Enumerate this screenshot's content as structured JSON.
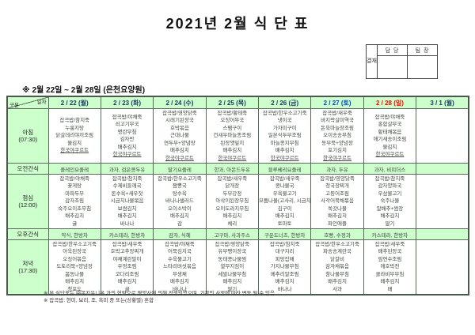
{
  "title": "2021년 2월 식 단 표",
  "approval": {
    "stamp_label": "결재",
    "col1": "담 당",
    "col2": "팀 장"
  },
  "subtitle": "※  2월 22일  ~  2월 28일  (은천요양원)",
  "table": {
    "corner": {
      "top": "일자",
      "bottom": "구분"
    },
    "header_bg": "#ccffcc",
    "columns": [
      {
        "label": "2 / 22 (월)",
        "color": "#1f3864"
      },
      {
        "label": "2 / 23 (화)",
        "color": "#1f3864"
      },
      {
        "label": "2 / 24 (수)",
        "color": "#1f3864"
      },
      {
        "label": "2 / 25 (목)",
        "color": "#1f3864"
      },
      {
        "label": "2 / 26 (금)",
        "color": "#1f3864"
      },
      {
        "label": "2 / 27 (토)",
        "color": "#0044cc"
      },
      {
        "label": "2 / 28 (일)",
        "color": "#ff0000"
      },
      {
        "label": "3 / 1 (월)",
        "color": "#1f3864"
      }
    ],
    "rows": [
      {
        "id": "breakfast",
        "type": "meal",
        "label_lines": [
          "아침",
          "(07:30)"
        ],
        "cells": [
          [
            "잡곡밥/참치죽",
            "누룽지탕",
            "닭살데리야끼조림",
            "물김치",
            "한국야쿠르트"
          ],
          [
            "잡곡밥/야채죽",
            "쇠고기무국",
            "명란무침",
            "김자반",
            "배추김치",
            "한국야쿠르트"
          ],
          [
            "잡곡밥/영양닭죽",
            "시래기된장국",
            "호박볶음",
            "근대나물",
            "연두부+양념장",
            "배추김치",
            "한국야쿠르트"
          ],
          [
            "잡곡밥/황태죽",
            "오징어무국",
            "스팸구이",
            "건새우마늘종조림",
            "된장깻잎지",
            "배추김치",
            "한국야쿠르트"
          ],
          [
            "잡곡밥/한우소고기죽",
            "냉이국",
            "가자미구이",
            "일본식두부조림",
            "마늘종지무침",
            "배추김치",
            "한국야쿠르트"
          ],
          [
            "잡곡밥/새우죽",
            "바지락살미역국",
            "돈육마늘장조림",
            "오이송송무침",
            "동부묵+양념장",
            "포기김치",
            "한국야쿠르트"
          ],
          [
            "잡곡밥/야채죽",
            "홍합살무국",
            "황태채볶음",
            "애기새송이조림",
            "물김치",
            "한국야쿠르트"
          ],
          []
        ]
      },
      {
        "id": "am-snack",
        "type": "snack",
        "label_lines": [
          "오전간식"
        ],
        "cells": [
          [
            "플레인요플레"
          ],
          [
            "과자, 검은콩두유"
          ],
          [
            "딸기요플레"
          ],
          [
            "한과, 아몬드두유"
          ],
          [
            "블루베리요플레"
          ],
          [
            "과자, 두유"
          ],
          [
            "과자, 비피더스"
          ],
          []
        ]
      },
      {
        "id": "lunch",
        "type": "meal",
        "label_lines": [
          "점심",
          "(12:00)"
        ],
        "cells": [
          [
            "잡곡밥/야채죽",
            "꽃게탕",
            "마파두부",
            "감자조림",
            "숙주오이초무침",
            "배추김치",
            "귤"
          ],
          [
            "잡곡밥/참치죽",
            "수제비들깨국",
            "돈수육+새우젓",
            "시금치나물볶음",
            "보쌈김치",
            "배추김치",
            "바나나"
          ],
          [
            "잡곡밥/한우소고기죽",
            "짬뽕국",
            "탕수육",
            "바나나샐러드",
            "오이소박이",
            "배추김치",
            "감"
          ],
          [
            "잡곡밥/새우죽",
            "닭개장",
            "두부강정",
            "아삭이된장무침",
            "오이도라지무침",
            "배추김치",
            "체리"
          ],
          [
            "잡곡밥/새우죽",
            "콩나물국",
            "우육불고기",
            "모둠나물(고사리, 시금치)",
            "김구이",
            "배추김치",
            "토마토"
          ],
          [
            "잡곡밥/영양닭죽",
            "청국장찌개",
            "고등어조림",
            "사각어묵채볶음",
            "쑥갓나물",
            "배추김치",
            "파인애플"
          ],
          [
            "잡곡밥/참치죽",
            "감자양파국",
            "우삼불고기",
            "숙주나물",
            "알배추+쌈장",
            "배추김치",
            "딸기"
          ],
          []
        ]
      },
      {
        "id": "pm-snack",
        "type": "snack",
        "label_lines": [
          "오후간식"
        ],
        "cells": [
          [
            "약식, 한방차"
          ],
          [
            "카스테라, 한방차"
          ],
          [
            "감자, 식혜"
          ],
          [
            "고구마, 사과주스"
          ],
          [
            "구운도너츠, 한방차"
          ],
          [
            "호빵, 수정과"
          ],
          [
            "카스테라, 한방차"
          ],
          []
        ]
      },
      {
        "id": "dinner",
        "type": "meal",
        "label_lines": [
          "저녁",
          "(17:30)"
        ],
        "cells": [
          [
            "잡곡밥/한우소고기죽",
            "아욱된장국",
            "오징어볶음",
            "도토리묵+양념장",
            "봄동나물",
            "배추김치",
            "청포도"
          ],
          [
            "잡곡밥/새우죽",
            "호박고추장찌개",
            "야채계란말이",
            "우엉조림",
            "코다리조림",
            "배추김치",
            "귤"
          ],
          [
            "잡곡밥/야채죽",
            "어묵김치국",
            "수육불고기",
            "느타리버섯볶음",
            "무생채",
            "배추김치",
            "바나나"
          ],
          [
            "잡곡밥/영양닭죽",
            "유부팽이장국",
            "동태콩나물찜",
            "열무지짐이",
            "세발나물무침",
            "배추김치",
            "딸기"
          ],
          [
            "잡곡밥/참치죽",
            "대구지리",
            "피망잡채",
            "가지나물무침",
            "메추리알조림",
            "배추김치",
            "바나나"
          ],
          [
            "잡곡밥/한우소고기죽",
            "파송송계란국",
            "닭갈비",
            "감자채볶음",
            "참나물무침",
            "배추김치",
            "사과"
          ],
          [
            "잡곡밥/새우죽",
            "배추된장국",
            "임연수조림",
            "애호박전",
            "콜라비무무침",
            "배추김치",
            "배"
          ],
          []
        ]
      }
    ]
  },
  "footnotes": [
    "※ 본 식단표는 ㈜복지유니온 과의 협약으로 영양사에 의해 작성되었으며, 기관의 사정에 따라 변동 될 수 있음",
    "※ 잡곡밥: 현미, 보리, 조, 흑미 중 또는(상황별) 혼합"
  ]
}
